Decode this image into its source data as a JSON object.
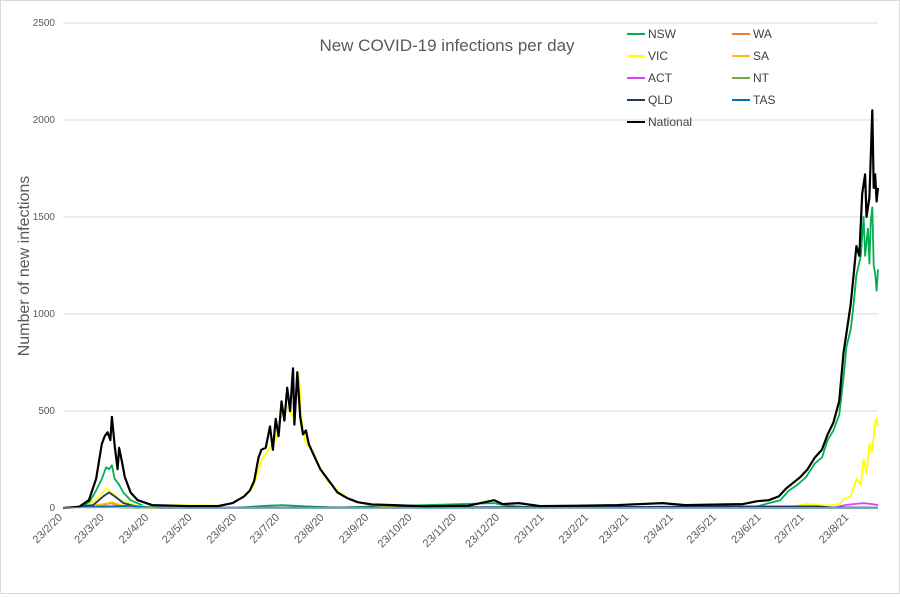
{
  "chart_data": {
    "type": "line",
    "title": "New COVID-19 infections per day",
    "xlabel": "",
    "ylabel": "Number of new infections",
    "ylim": [
      0,
      2500
    ],
    "yticks": [
      0,
      500,
      1000,
      1500,
      2000,
      2500
    ],
    "xlim": [
      "2020-02-23",
      "2021-09-12"
    ],
    "xtick_labels": [
      "23/2/20",
      "23/3/20",
      "23/4/20",
      "23/5/20",
      "23/6/20",
      "23/7/20",
      "23/8/20",
      "23/9/20",
      "23/10/20",
      "23/11/20",
      "23/12/20",
      "23/1/21",
      "23/2/21",
      "23/3/21",
      "23/4/21",
      "23/5/21",
      "23/6/21",
      "23/7/21",
      "23/8/21"
    ],
    "xtick_dates": [
      "2020-02-23",
      "2020-03-23",
      "2020-04-23",
      "2020-05-23",
      "2020-06-23",
      "2020-07-23",
      "2020-08-23",
      "2020-09-23",
      "2020-10-23",
      "2020-11-23",
      "2020-12-23",
      "2021-01-23",
      "2021-02-23",
      "2021-03-23",
      "2021-04-23",
      "2021-05-23",
      "2021-06-23",
      "2021-07-23",
      "2021-08-23"
    ],
    "grid": true,
    "legend_position": "top-right",
    "series": [
      {
        "name": "NSW",
        "color": "#00b050",
        "points": [
          [
            "2020-02-23",
            0
          ],
          [
            "2020-03-05",
            3
          ],
          [
            "2020-03-12",
            25
          ],
          [
            "2020-03-17",
            90
          ],
          [
            "2020-03-21",
            150
          ],
          [
            "2020-03-24",
            210
          ],
          [
            "2020-03-26",
            200
          ],
          [
            "2020-03-28",
            220
          ],
          [
            "2020-03-30",
            150
          ],
          [
            "2020-04-02",
            120
          ],
          [
            "2020-04-05",
            80
          ],
          [
            "2020-04-10",
            40
          ],
          [
            "2020-04-20",
            8
          ],
          [
            "2020-05-10",
            3
          ],
          [
            "2020-06-23",
            2
          ],
          [
            "2020-07-15",
            12
          ],
          [
            "2020-07-25",
            15
          ],
          [
            "2020-08-10",
            8
          ],
          [
            "2020-09-01",
            2
          ],
          [
            "2020-12-19",
            25
          ],
          [
            "2020-12-28",
            12
          ],
          [
            "2021-01-15",
            3
          ],
          [
            "2021-06-20",
            8
          ],
          [
            "2021-06-28",
            25
          ],
          [
            "2021-07-06",
            40
          ],
          [
            "2021-07-12",
            90
          ],
          [
            "2021-07-18",
            120
          ],
          [
            "2021-07-24",
            160
          ],
          [
            "2021-07-30",
            230
          ],
          [
            "2021-08-04",
            260
          ],
          [
            "2021-08-08",
            350
          ],
          [
            "2021-08-12",
            400
          ],
          [
            "2021-08-16",
            480
          ],
          [
            "2021-08-19",
            670
          ],
          [
            "2021-08-21",
            830
          ],
          [
            "2021-08-24",
            920
          ],
          [
            "2021-08-26",
            1050
          ],
          [
            "2021-08-28",
            1200
          ],
          [
            "2021-08-31",
            1300
          ],
          [
            "2021-09-02",
            1500
          ],
          [
            "2021-09-03",
            1300
          ],
          [
            "2021-09-05",
            1440
          ],
          [
            "2021-09-06",
            1260
          ],
          [
            "2021-09-07",
            1480
          ],
          [
            "2021-09-08",
            1550
          ],
          [
            "2021-09-09",
            1250
          ],
          [
            "2021-09-10",
            1210
          ],
          [
            "2021-09-11",
            1120
          ],
          [
            "2021-09-12",
            1230
          ]
        ]
      },
      {
        "name": "WA",
        "color": "#ed7d31",
        "points": [
          [
            "2020-02-23",
            0
          ],
          [
            "2020-03-20",
            12
          ],
          [
            "2020-03-27",
            25
          ],
          [
            "2020-04-05",
            8
          ],
          [
            "2020-04-20",
            0
          ],
          [
            "2021-09-12",
            0
          ]
        ]
      },
      {
        "name": "VIC",
        "color": "#ffff00",
        "points": [
          [
            "2020-02-23",
            0
          ],
          [
            "2020-03-10",
            8
          ],
          [
            "2020-03-18",
            50
          ],
          [
            "2020-03-24",
            100
          ],
          [
            "2020-03-28",
            80
          ],
          [
            "2020-04-03",
            40
          ],
          [
            "2020-04-15",
            10
          ],
          [
            "2020-05-10",
            15
          ],
          [
            "2020-06-10",
            12
          ],
          [
            "2020-06-20",
            25
          ],
          [
            "2020-06-28",
            60
          ],
          [
            "2020-07-05",
            120
          ],
          [
            "2020-07-10",
            250
          ],
          [
            "2020-07-15",
            300
          ],
          [
            "2020-07-20",
            350
          ],
          [
            "2020-07-24",
            480
          ],
          [
            "2020-07-28",
            520
          ],
          [
            "2020-08-01",
            470
          ],
          [
            "2020-08-05",
            700
          ],
          [
            "2020-08-07",
            450
          ],
          [
            "2020-08-10",
            330
          ],
          [
            "2020-08-15",
            290
          ],
          [
            "2020-08-20",
            200
          ],
          [
            "2020-08-25",
            140
          ],
          [
            "2020-09-01",
            90
          ],
          [
            "2020-09-08",
            50
          ],
          [
            "2020-09-15",
            30
          ],
          [
            "2020-09-25",
            15
          ],
          [
            "2020-10-10",
            8
          ],
          [
            "2020-11-01",
            2
          ],
          [
            "2021-05-25",
            5
          ],
          [
            "2021-06-05",
            3
          ],
          [
            "2021-07-15",
            10
          ],
          [
            "2021-07-25",
            20
          ],
          [
            "2021-08-08",
            12
          ],
          [
            "2021-08-16",
            20
          ],
          [
            "2021-08-20",
            50
          ],
          [
            "2021-08-24",
            60
          ],
          [
            "2021-08-28",
            150
          ],
          [
            "2021-08-31",
            120
          ],
          [
            "2021-09-02",
            250
          ],
          [
            "2021-09-04",
            180
          ],
          [
            "2021-09-06",
            330
          ],
          [
            "2021-09-08",
            290
          ],
          [
            "2021-09-10",
            440
          ],
          [
            "2021-09-11",
            460
          ],
          [
            "2021-09-12",
            420
          ]
        ]
      },
      {
        "name": "SA",
        "color": "#ffc000",
        "points": [
          [
            "2020-02-23",
            0
          ],
          [
            "2020-03-22",
            20
          ],
          [
            "2020-03-28",
            30
          ],
          [
            "2020-04-05",
            10
          ],
          [
            "2020-04-15",
            0
          ],
          [
            "2021-09-12",
            0
          ]
        ]
      },
      {
        "name": "ACT",
        "color": "#e040fb",
        "points": [
          [
            "2020-02-23",
            0
          ],
          [
            "2020-03-25",
            8
          ],
          [
            "2020-04-05",
            2
          ],
          [
            "2021-08-12",
            0
          ],
          [
            "2021-08-20",
            15
          ],
          [
            "2021-08-26",
            20
          ],
          [
            "2021-09-02",
            25
          ],
          [
            "2021-09-08",
            20
          ],
          [
            "2021-09-12",
            15
          ]
        ]
      },
      {
        "name": "NT",
        "color": "#70ad47",
        "points": [
          [
            "2020-02-23",
            0
          ],
          [
            "2020-03-25",
            5
          ],
          [
            "2020-04-05",
            0
          ],
          [
            "2021-09-12",
            0
          ]
        ]
      },
      {
        "name": "QLD",
        "color": "#1f3864",
        "points": [
          [
            "2020-02-23",
            0
          ],
          [
            "2020-03-15",
            15
          ],
          [
            "2020-03-22",
            60
          ],
          [
            "2020-03-26",
            80
          ],
          [
            "2020-03-30",
            60
          ],
          [
            "2020-04-05",
            25
          ],
          [
            "2020-04-15",
            5
          ],
          [
            "2020-05-01",
            0
          ],
          [
            "2021-08-01",
            8
          ],
          [
            "2021-08-10",
            3
          ],
          [
            "2021-09-12",
            2
          ]
        ]
      },
      {
        "name": "TAS",
        "color": "#0070c0",
        "points": [
          [
            "2020-02-23",
            0
          ],
          [
            "2020-04-10",
            12
          ],
          [
            "2020-04-20",
            5
          ],
          [
            "2020-05-05",
            0
          ],
          [
            "2021-09-12",
            0
          ]
        ]
      },
      {
        "name": "National",
        "color": "#000000",
        "points": [
          [
            "2020-02-23",
            0
          ],
          [
            "2020-03-05",
            5
          ],
          [
            "2020-03-12",
            40
          ],
          [
            "2020-03-17",
            150
          ],
          [
            "2020-03-21",
            330
          ],
          [
            "2020-03-23",
            370
          ],
          [
            "2020-03-25",
            390
          ],
          [
            "2020-03-27",
            350
          ],
          [
            "2020-03-28",
            470
          ],
          [
            "2020-03-30",
            320
          ],
          [
            "2020-04-01",
            200
          ],
          [
            "2020-04-02",
            310
          ],
          [
            "2020-04-04",
            240
          ],
          [
            "2020-04-06",
            160
          ],
          [
            "2020-04-10",
            80
          ],
          [
            "2020-04-15",
            40
          ],
          [
            "2020-04-25",
            15
          ],
          [
            "2020-05-10",
            12
          ],
          [
            "2020-05-20",
            10
          ],
          [
            "2020-06-10",
            10
          ],
          [
            "2020-06-20",
            25
          ],
          [
            "2020-06-28",
            60
          ],
          [
            "2020-07-02",
            90
          ],
          [
            "2020-07-05",
            140
          ],
          [
            "2020-07-08",
            260
          ],
          [
            "2020-07-10",
            300
          ],
          [
            "2020-07-13",
            310
          ],
          [
            "2020-07-16",
            420
          ],
          [
            "2020-07-18",
            300
          ],
          [
            "2020-07-20",
            460
          ],
          [
            "2020-07-22",
            370
          ],
          [
            "2020-07-24",
            550
          ],
          [
            "2020-07-26",
            450
          ],
          [
            "2020-07-28",
            620
          ],
          [
            "2020-07-30",
            500
          ],
          [
            "2020-08-01",
            720
          ],
          [
            "2020-08-02",
            430
          ],
          [
            "2020-08-04",
            700
          ],
          [
            "2020-08-06",
            470
          ],
          [
            "2020-08-08",
            380
          ],
          [
            "2020-08-10",
            400
          ],
          [
            "2020-08-12",
            330
          ],
          [
            "2020-08-15",
            280
          ],
          [
            "2020-08-20",
            200
          ],
          [
            "2020-08-25",
            150
          ],
          [
            "2020-09-01",
            80
          ],
          [
            "2020-09-08",
            50
          ],
          [
            "2020-09-15",
            30
          ],
          [
            "2020-09-25",
            18
          ],
          [
            "2020-10-10",
            15
          ],
          [
            "2020-11-01",
            8
          ],
          [
            "2020-12-01",
            12
          ],
          [
            "2020-12-19",
            40
          ],
          [
            "2020-12-25",
            20
          ],
          [
            "2021-01-05",
            25
          ],
          [
            "2021-01-20",
            10
          ],
          [
            "2021-02-15",
            12
          ],
          [
            "2021-03-15",
            15
          ],
          [
            "2021-04-15",
            25
          ],
          [
            "2021-05-01",
            15
          ],
          [
            "2021-05-25",
            18
          ],
          [
            "2021-06-10",
            20
          ],
          [
            "2021-06-20",
            35
          ],
          [
            "2021-06-28",
            40
          ],
          [
            "2021-07-05",
            60
          ],
          [
            "2021-07-10",
            100
          ],
          [
            "2021-07-15",
            130
          ],
          [
            "2021-07-20",
            160
          ],
          [
            "2021-07-25",
            200
          ],
          [
            "2021-07-30",
            260
          ],
          [
            "2021-08-04",
            300
          ],
          [
            "2021-08-08",
            380
          ],
          [
            "2021-08-12",
            440
          ],
          [
            "2021-08-16",
            550
          ],
          [
            "2021-08-19",
            800
          ],
          [
            "2021-08-21",
            900
          ],
          [
            "2021-08-24",
            1050
          ],
          [
            "2021-08-26",
            1200
          ],
          [
            "2021-08-28",
            1350
          ],
          [
            "2021-08-30",
            1300
          ],
          [
            "2021-09-01",
            1620
          ],
          [
            "2021-09-03",
            1720
          ],
          [
            "2021-09-04",
            1500
          ],
          [
            "2021-09-06",
            1600
          ],
          [
            "2021-09-08",
            2050
          ],
          [
            "2021-09-09",
            1650
          ],
          [
            "2021-09-10",
            1720
          ],
          [
            "2021-09-11",
            1580
          ],
          [
            "2021-09-12",
            1650
          ]
        ]
      }
    ]
  }
}
